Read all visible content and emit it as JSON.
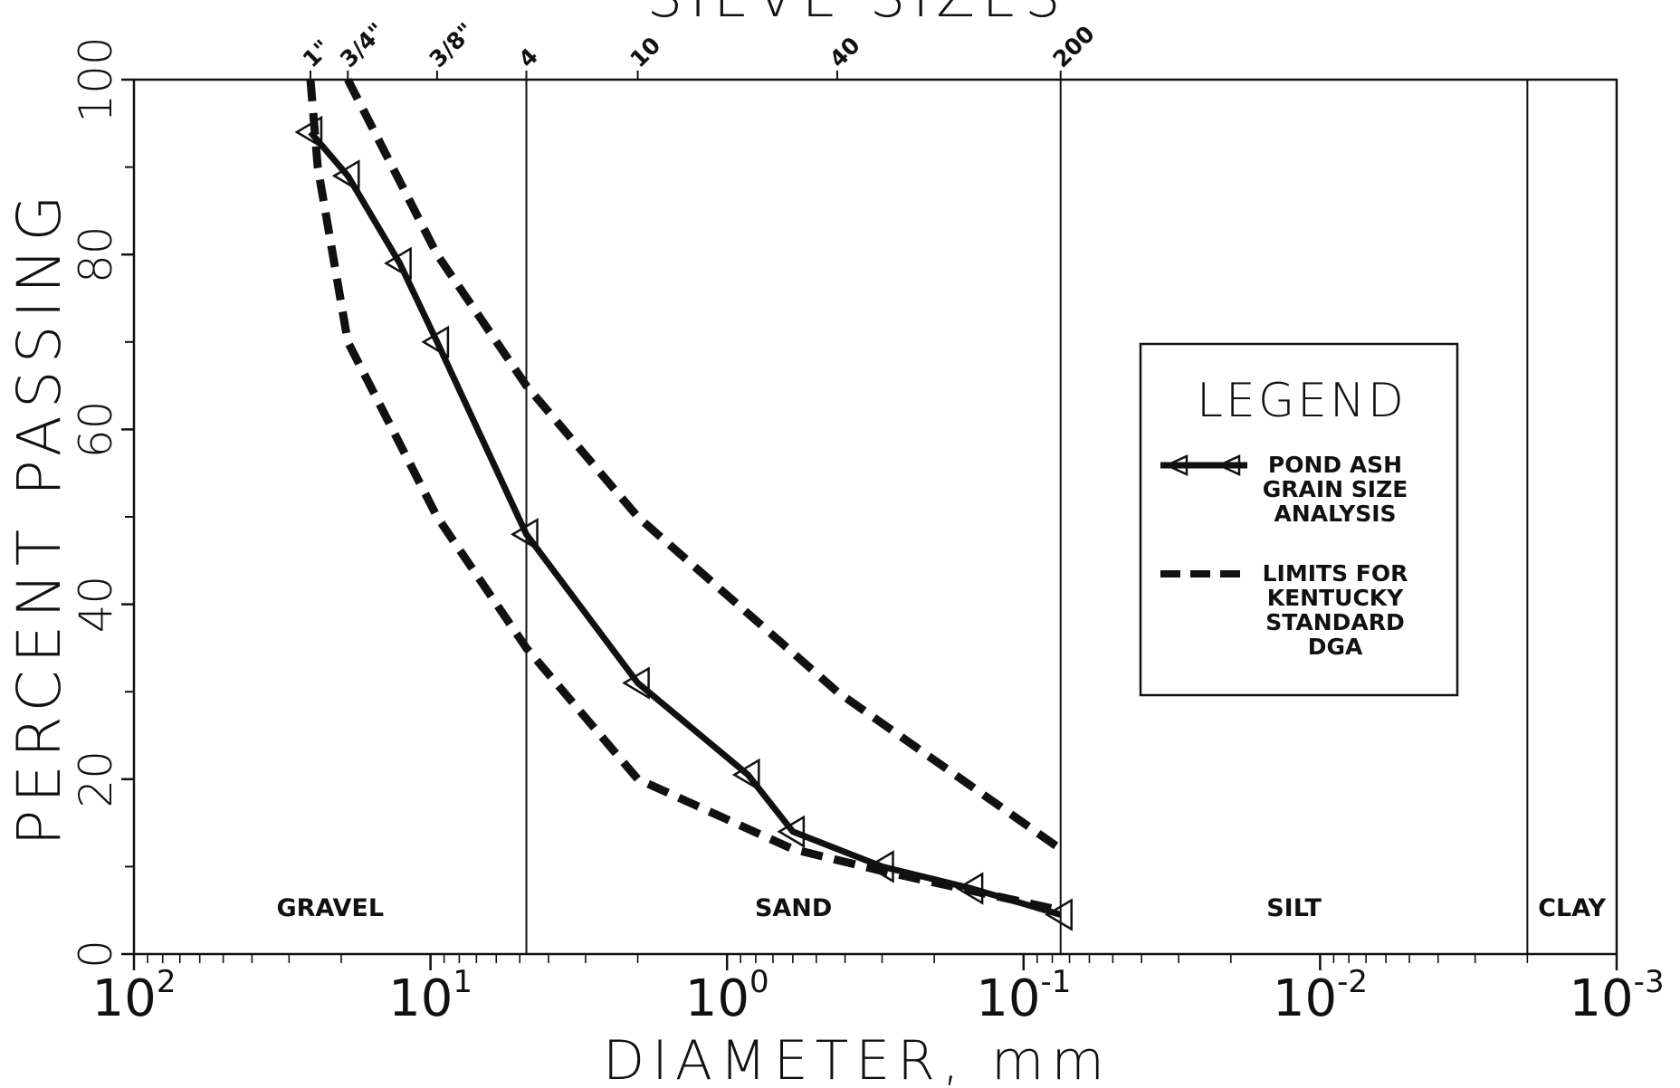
{
  "chart_data": {
    "type": "line",
    "title": "SIEVE SIZES",
    "xlabel": "DIAMETER, mm",
    "ylabel": "PERCENT PASSING",
    "x_scale": "log",
    "x_reversed": true,
    "xlim": [
      100,
      0.001
    ],
    "ylim": [
      0,
      100
    ],
    "y_ticks": [
      0,
      20,
      40,
      60,
      80,
      100
    ],
    "y_tick_labels": [
      "0",
      "20",
      "40",
      "60",
      "80",
      "100"
    ],
    "y_minor_ticks": [
      10,
      30,
      50,
      70,
      90
    ],
    "x_ticks": [
      {
        "value": 100,
        "base": "10",
        "exp": "2"
      },
      {
        "value": 10,
        "base": "10",
        "exp": "1"
      },
      {
        "value": 1,
        "base": "10",
        "exp": "0"
      },
      {
        "value": 0.1,
        "base": "10",
        "exp": "-1"
      },
      {
        "value": 0.01,
        "base": "10",
        "exp": "-2"
      },
      {
        "value": 0.001,
        "base": "10",
        "exp": "-3"
      }
    ],
    "sieve_sizes": [
      {
        "label": "1\"",
        "diameter": 25.4
      },
      {
        "label": "3/4\"",
        "diameter": 19.0
      },
      {
        "label": "3/8\"",
        "diameter": 9.5
      },
      {
        "label": "4",
        "diameter": 4.75
      },
      {
        "label": "10",
        "diameter": 2.0
      },
      {
        "label": "40",
        "diameter": 0.425
      },
      {
        "label": "200",
        "diameter": 0.075
      }
    ],
    "zones": [
      {
        "label": "GRAVEL",
        "from": 100,
        "to": 4.75
      },
      {
        "label": "SAND",
        "from": 4.75,
        "to": 0.075
      },
      {
        "label": "SILT",
        "from": 0.075,
        "to": 0.002
      },
      {
        "label": "CLAY",
        "from": 0.002,
        "to": 0.001
      }
    ],
    "zone_boundaries": [
      4.75,
      0.075,
      0.002
    ],
    "series": [
      {
        "name": "POND ASH GRAIN SIZE ANALYSIS",
        "style": "solid",
        "marker": "triangle-left",
        "x": [
          25.4,
          19.0,
          12.7,
          9.5,
          4.75,
          2.0,
          0.85,
          0.6,
          0.3,
          0.15,
          0.075
        ],
        "y": [
          94,
          89,
          79,
          70,
          48,
          31,
          20.5,
          14,
          10,
          7.5,
          4.5
        ]
      },
      {
        "name": "LIMITS FOR KENTUCKY STANDARD DGA",
        "style": "dashed",
        "marker": "none",
        "x": [
          19.0,
          9.5,
          4.75,
          2.0,
          0.425,
          0.075
        ],
        "y": [
          100,
          80,
          65,
          50,
          30,
          12
        ]
      },
      {
        "name": "LIMITS FOR KENTUCKY STANDARD DGA",
        "style": "dashed",
        "marker": "none",
        "x": [
          25.4,
          24.0,
          19.0,
          9.5,
          4.75,
          2.0,
          0.6,
          0.3,
          0.075
        ],
        "y": [
          100,
          90,
          70,
          50,
          35,
          20,
          12,
          9.5,
          5
        ]
      }
    ],
    "legend": {
      "title": "LEGEND",
      "position": "right",
      "entries": [
        {
          "label_lines": [
            "POND ASH",
            "GRAIN SIZE",
            "ANALYSIS"
          ],
          "style": "solid",
          "marker": "triangle-left"
        },
        {
          "label_lines": [
            "LIMITS FOR",
            "KENTUCKY",
            "STANDARD",
            "DGA"
          ],
          "style": "dashed",
          "marker": "none"
        }
      ]
    },
    "colors": {
      "ink": "#111111",
      "background": "#ffffff"
    }
  }
}
